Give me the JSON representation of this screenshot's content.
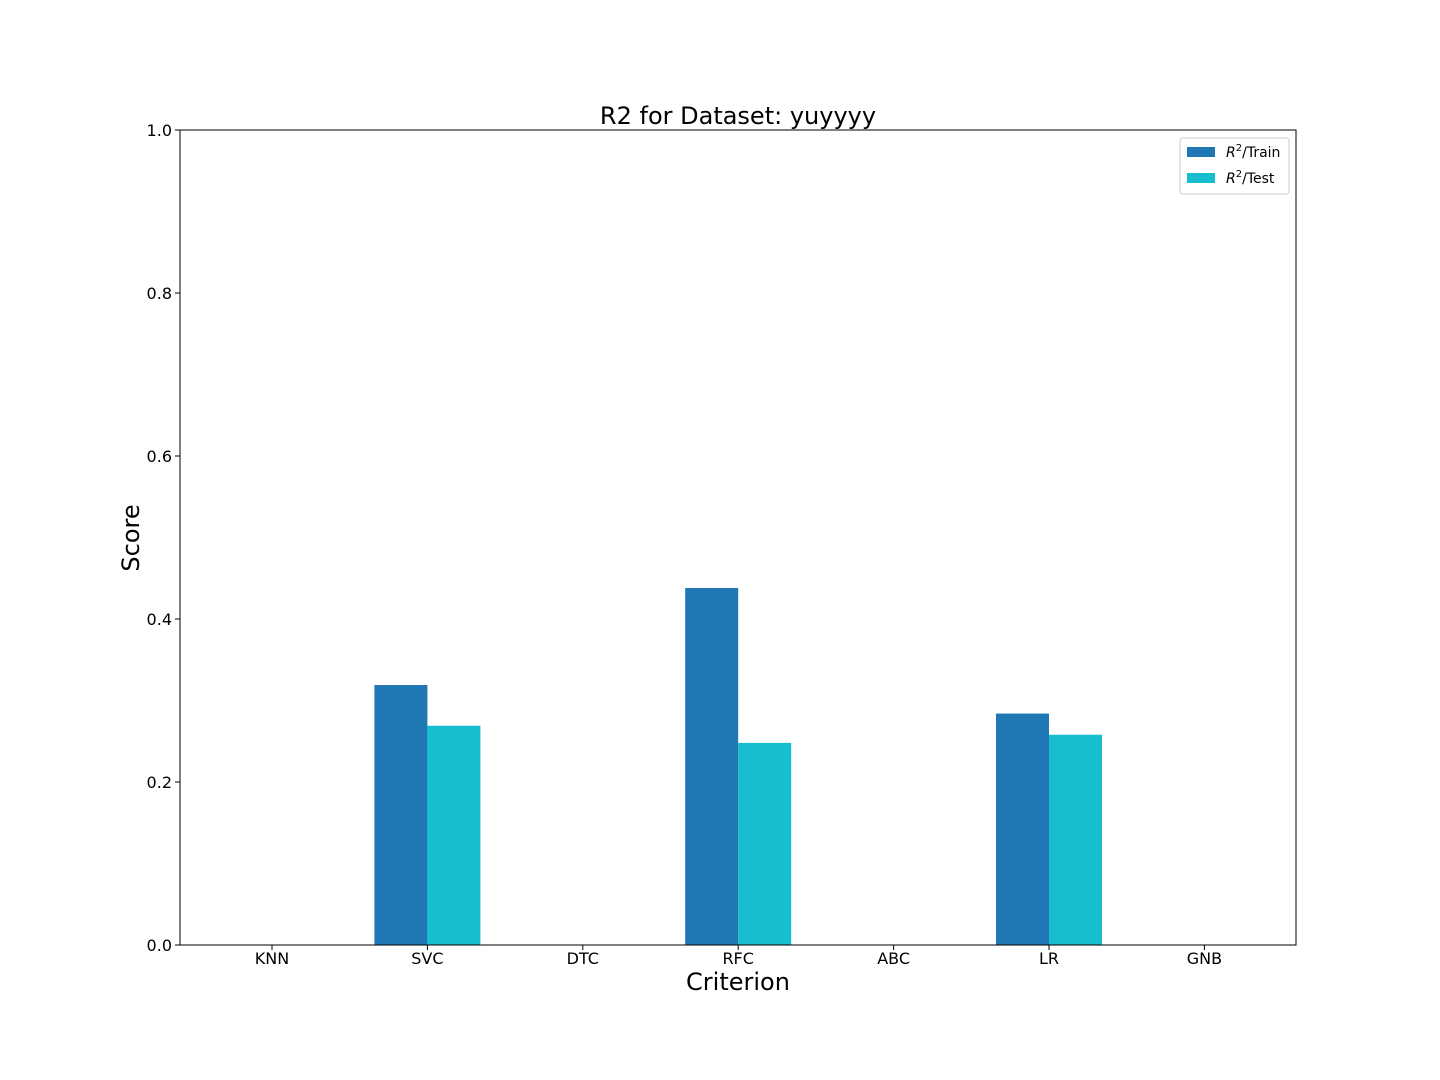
{
  "chart_data": {
    "type": "bar",
    "title": "R2 for Dataset: yuyyyy",
    "xlabel": "Criterion",
    "ylabel": "Score",
    "categories": [
      "KNN",
      "SVC",
      "DTC",
      "RFC",
      "ABC",
      "LR",
      "GNB"
    ],
    "series": [
      {
        "name": "$R^2$/Train",
        "legend_base": "R",
        "legend_sup": "2",
        "legend_suffix": "/Train",
        "color": "#1f77b4",
        "values": [
          0,
          0.319,
          0,
          0.438,
          0,
          0.284,
          0
        ]
      },
      {
        "name": "$R^2$/Test",
        "legend_base": "R",
        "legend_sup": "2",
        "legend_suffix": "/Test",
        "color": "#17becf",
        "values": [
          0,
          0.269,
          0,
          0.248,
          0,
          0.258,
          0
        ]
      }
    ],
    "ylim": [
      0,
      1.0
    ],
    "yticks": [
      "0.0",
      "0.2",
      "0.4",
      "0.6",
      "0.8",
      "1.0"
    ],
    "grid": false,
    "legend_position": "top-right"
  }
}
